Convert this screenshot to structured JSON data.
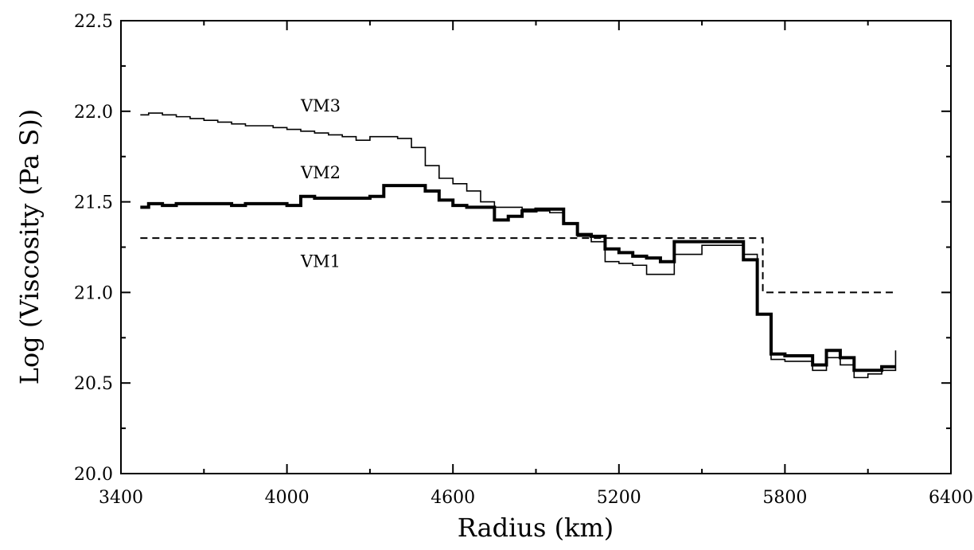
{
  "chart_data": {
    "type": "line",
    "step": true,
    "xlabel": "Radius (km)",
    "ylabel": "Log (Viscosity (Pa S))",
    "xlim": [
      3400,
      6400
    ],
    "ylim": [
      20.0,
      22.5
    ],
    "xticks": [
      3400,
      4000,
      4600,
      5200,
      5800,
      6400
    ],
    "xtick_labels": [
      "3400",
      "4000",
      "4600",
      "5200",
      "5800",
      "6400"
    ],
    "yticks": [
      20.0,
      20.5,
      21.0,
      21.5,
      22.0,
      22.5
    ],
    "ytick_labels": [
      "20.0",
      "20.5",
      "21.0",
      "21.5",
      "22.0",
      "22.5"
    ],
    "grid": false,
    "series": [
      {
        "name": "VM1",
        "style": "dashed",
        "color": "#000000",
        "x": [
          3470,
          5720,
          5720,
          6200
        ],
        "y": [
          21.3,
          21.3,
          21.0,
          21.0
        ]
      },
      {
        "name": "VM2",
        "style": "thick",
        "color": "#000000",
        "x": [
          3470,
          3500,
          3550,
          3600,
          3650,
          3700,
          3750,
          3800,
          3850,
          3900,
          3950,
          4000,
          4050,
          4100,
          4150,
          4200,
          4250,
          4300,
          4350,
          4400,
          4450,
          4500,
          4550,
          4600,
          4650,
          4700,
          4750,
          4800,
          4850,
          4900,
          4950,
          5000,
          5050,
          5100,
          5150,
          5200,
          5250,
          5300,
          5350,
          5400,
          5450,
          5500,
          5550,
          5600,
          5650,
          5700,
          5720,
          5750,
          5800,
          5850,
          5900,
          5950,
          6000,
          6050,
          6100,
          6150,
          6200
        ],
        "y": [
          21.47,
          21.49,
          21.48,
          21.49,
          21.49,
          21.49,
          21.49,
          21.48,
          21.49,
          21.49,
          21.49,
          21.48,
          21.53,
          21.52,
          21.52,
          21.52,
          21.52,
          21.53,
          21.59,
          21.59,
          21.59,
          21.56,
          21.51,
          21.48,
          21.47,
          21.47,
          21.4,
          21.42,
          21.45,
          21.46,
          21.46,
          21.38,
          21.32,
          21.31,
          21.24,
          21.22,
          21.2,
          21.19,
          21.17,
          21.28,
          21.28,
          21.28,
          21.28,
          21.28,
          21.18,
          20.88,
          20.88,
          20.66,
          20.65,
          20.65,
          20.6,
          20.68,
          20.64,
          20.57,
          20.57,
          20.59,
          20.59
        ]
      },
      {
        "name": "VM3",
        "style": "thin",
        "color": "#000000",
        "x": [
          3470,
          3500,
          3550,
          3600,
          3650,
          3700,
          3750,
          3800,
          3850,
          3900,
          3950,
          4000,
          4050,
          4100,
          4150,
          4200,
          4250,
          4300,
          4350,
          4400,
          4450,
          4500,
          4550,
          4600,
          4650,
          4700,
          4750,
          4800,
          4850,
          4900,
          4950,
          5000,
          5050,
          5100,
          5150,
          5200,
          5250,
          5300,
          5350,
          5400,
          5450,
          5500,
          5550,
          5600,
          5650,
          5700,
          5720,
          5750,
          5800,
          5850,
          5900,
          5950,
          6000,
          6050,
          6100,
          6150,
          6200
        ],
        "y": [
          21.98,
          21.99,
          21.98,
          21.97,
          21.96,
          21.95,
          21.94,
          21.93,
          21.92,
          21.92,
          21.91,
          21.9,
          21.89,
          21.88,
          21.87,
          21.86,
          21.84,
          21.86,
          21.86,
          21.85,
          21.8,
          21.7,
          21.63,
          21.6,
          21.56,
          21.5,
          21.47,
          21.47,
          21.46,
          21.45,
          21.44,
          21.38,
          21.31,
          21.28,
          21.17,
          21.16,
          21.15,
          21.1,
          21.1,
          21.21,
          21.21,
          21.26,
          21.26,
          21.26,
          21.21,
          20.88,
          20.88,
          20.63,
          20.62,
          20.62,
          20.57,
          20.64,
          20.6,
          20.53,
          20.55,
          20.57,
          20.68
        ]
      }
    ],
    "annotations": [
      {
        "text": "VM3",
        "x": 4050,
        "y": 22.0
      },
      {
        "text": "VM2",
        "x": 4050,
        "y": 21.63
      },
      {
        "text": "VM1",
        "x": 4050,
        "y": 21.14
      }
    ]
  }
}
